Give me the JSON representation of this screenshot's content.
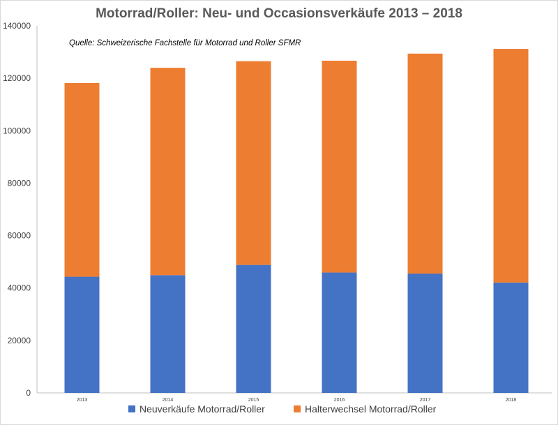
{
  "chart_data": {
    "type": "bar",
    "stacked": true,
    "title": "Motorrad/Roller: Neu- und Occasionsverkäufe 2013 – 2018",
    "annotation": "Quelle: Schweizerische Fachstelle für Motorrad und Roller SFMR",
    "categories": [
      "2013",
      "2014",
      "2015",
      "2016",
      "2017",
      "2018"
    ],
    "ylim": [
      0,
      140000
    ],
    "yticks": [
      "0",
      "20000",
      "40000",
      "60000",
      "80000",
      "100000",
      "120000",
      "140000"
    ],
    "grid": false,
    "legend_position": "bottom",
    "series": [
      {
        "name": "Neuverkäufe Motorrad/Roller",
        "color": "#4472C4",
        "values": [
          44300,
          44900,
          48800,
          45900,
          45500,
          42100
        ]
      },
      {
        "name": "Halterwechsel Motorrad/Roller",
        "color": "#ED7D31",
        "values": [
          73900,
          79100,
          77700,
          80800,
          83900,
          89100
        ]
      }
    ]
  }
}
